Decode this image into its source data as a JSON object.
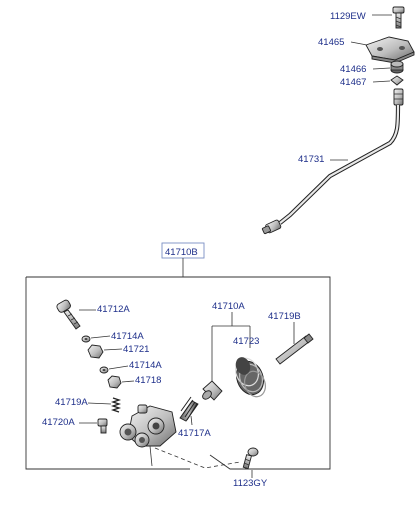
{
  "labels": {
    "p1129EW": "1129EW",
    "p41465": "41465",
    "p41466": "41466",
    "p41467": "41467",
    "p41731": "41731",
    "p41710B": "41710B",
    "p41712A": "41712A",
    "p41714A_1": "41714A",
    "p41721": "41721",
    "p41714A_2": "41714A",
    "p41718": "41718",
    "p41719A": "41719A",
    "p41720A": "41720A",
    "p41710A": "41710A",
    "p41723": "41723",
    "p41719B": "41719B",
    "p41717A": "41717A",
    "p1123GY": "1123GY"
  },
  "colors": {
    "label": "#1e2f8a",
    "line": "#333333",
    "box_label_border": "#7a8fc4"
  }
}
